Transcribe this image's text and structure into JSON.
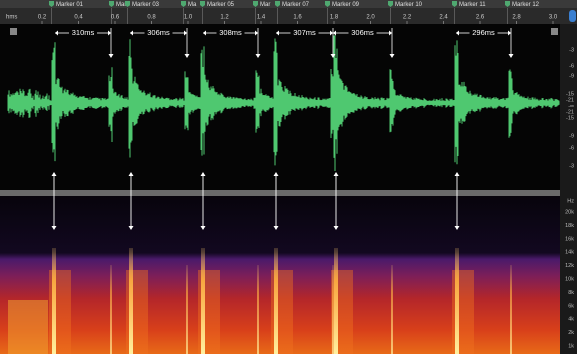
{
  "markers": [
    "Marker 01",
    "Mark",
    "Marker 03",
    "Ma",
    "Marker 05",
    "Mar",
    "Marker 07",
    "Marker 09",
    "Marker 10",
    "Marker 11",
    "Marker 12"
  ],
  "ruler": {
    "unit": "hms",
    "ticks": [
      "0.2",
      "0.4",
      "0.6",
      "0.8",
      "1.0",
      "1.2",
      "1.4",
      "1.6",
      "1.8",
      "2.0",
      "2.2",
      "2.4",
      "2.6",
      "2.8",
      "3.0"
    ]
  },
  "amplitude_scale": [
    "-3",
    "-6",
    "-9",
    "-15",
    "-21",
    "-∞",
    "-21",
    "-15",
    "-9",
    "-6",
    "-3"
  ],
  "intervals": [
    "310ms",
    "306ms",
    "308ms",
    "307ms",
    "306ms",
    "296ms"
  ],
  "frequency_scale": {
    "unit": "Hz",
    "labels": [
      "20k",
      "18k",
      "16k",
      "14k",
      "12k",
      "10k",
      "8k",
      "6k",
      "4k",
      "2k",
      "1k"
    ]
  }
}
